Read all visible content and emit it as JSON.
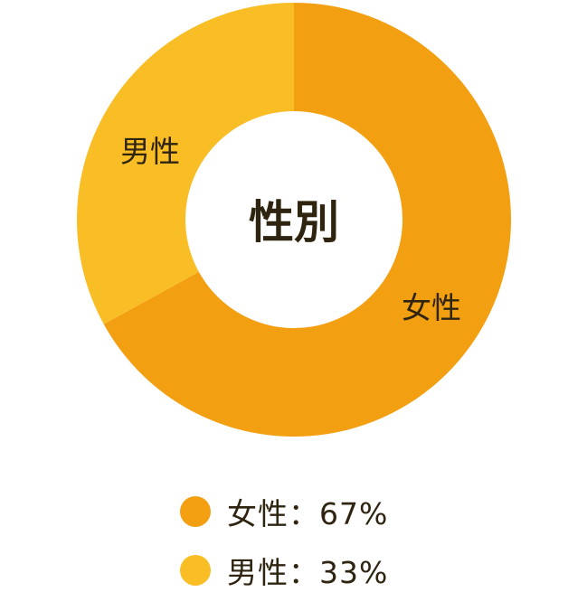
{
  "chart_data": {
    "type": "pie",
    "donut": true,
    "title": "性別",
    "categories": [
      "女性",
      "男性"
    ],
    "values": [
      67,
      33
    ],
    "colors": [
      "#F39F12",
      "#F9BD26"
    ],
    "start": "top",
    "direction": "clockwise",
    "legend": {
      "placement": "bottom",
      "items": [
        "女性：67%",
        "男性：33%"
      ]
    }
  }
}
